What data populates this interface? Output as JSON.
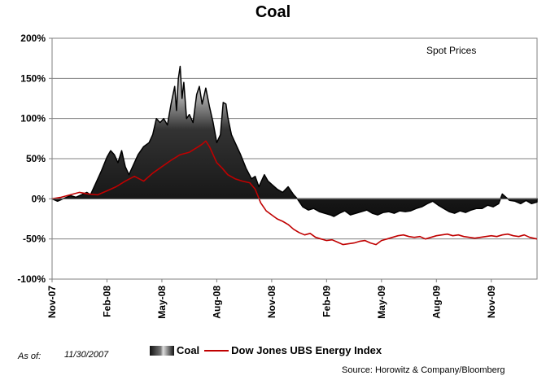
{
  "chart_data": {
    "type": "area",
    "title": "Coal",
    "annotation": "Spot Prices",
    "xlabel": "",
    "ylabel": "",
    "ylim": [
      -100,
      200
    ],
    "y_ticks": [
      "200%",
      "150%",
      "100%",
      "50%",
      "0%",
      "-50%",
      "-100%"
    ],
    "y_tick_values": [
      200,
      150,
      100,
      50,
      0,
      -50,
      -100
    ],
    "x_tick_labels": [
      "Nov-07",
      "Feb-08",
      "May-08",
      "Aug-08",
      "Nov-08",
      "Feb-09",
      "May-09",
      "Aug-09",
      "Nov-09"
    ],
    "x_range_months": [
      0,
      26.5
    ],
    "grid": true,
    "legend_position": "bottom",
    "series": [
      {
        "name": "Coal",
        "style": "area",
        "points": [
          [
            0,
            0
          ],
          [
            0.3,
            -3
          ],
          [
            0.6,
            0
          ],
          [
            1,
            4
          ],
          [
            1.3,
            2
          ],
          [
            1.6,
            5
          ],
          [
            1.9,
            8
          ],
          [
            2.1,
            5
          ],
          [
            2.4,
            20
          ],
          [
            2.7,
            35
          ],
          [
            3,
            52
          ],
          [
            3.2,
            60
          ],
          [
            3.4,
            55
          ],
          [
            3.6,
            45
          ],
          [
            3.8,
            60
          ],
          [
            4,
            40
          ],
          [
            4.2,
            30
          ],
          [
            4.5,
            45
          ],
          [
            4.7,
            55
          ],
          [
            5,
            65
          ],
          [
            5.3,
            70
          ],
          [
            5.5,
            80
          ],
          [
            5.7,
            100
          ],
          [
            5.9,
            95
          ],
          [
            6.1,
            100
          ],
          [
            6.3,
            92
          ],
          [
            6.5,
            118
          ],
          [
            6.7,
            140
          ],
          [
            6.8,
            110
          ],
          [
            6.9,
            150
          ],
          [
            7,
            165
          ],
          [
            7.1,
            125
          ],
          [
            7.2,
            145
          ],
          [
            7.35,
            100
          ],
          [
            7.5,
            105
          ],
          [
            7.7,
            95
          ],
          [
            7.9,
            130
          ],
          [
            8.05,
            140
          ],
          [
            8.2,
            118
          ],
          [
            8.4,
            138
          ],
          [
            8.6,
            115
          ],
          [
            8.8,
            95
          ],
          [
            9,
            70
          ],
          [
            9.2,
            80
          ],
          [
            9.35,
            120
          ],
          [
            9.5,
            118
          ],
          [
            9.6,
            102
          ],
          [
            9.8,
            80
          ],
          [
            10,
            70
          ],
          [
            10.3,
            55
          ],
          [
            10.6,
            38
          ],
          [
            10.9,
            25
          ],
          [
            11.1,
            28
          ],
          [
            11.3,
            15
          ],
          [
            11.6,
            30
          ],
          [
            11.8,
            22
          ],
          [
            12,
            18
          ],
          [
            12.3,
            12
          ],
          [
            12.6,
            8
          ],
          [
            12.9,
            15
          ],
          [
            13.2,
            5
          ],
          [
            13.4,
            0
          ],
          [
            13.7,
            -10
          ],
          [
            14,
            -14
          ],
          [
            14.3,
            -12
          ],
          [
            14.6,
            -16
          ],
          [
            14.9,
            -18
          ],
          [
            15.2,
            -20
          ],
          [
            15.4,
            -22
          ],
          [
            15.7,
            -18
          ],
          [
            16,
            -15
          ],
          [
            16.3,
            -20
          ],
          [
            16.6,
            -18
          ],
          [
            16.9,
            -16
          ],
          [
            17.2,
            -14
          ],
          [
            17.5,
            -18
          ],
          [
            17.8,
            -20
          ],
          [
            18.1,
            -17
          ],
          [
            18.4,
            -16
          ],
          [
            18.7,
            -18
          ],
          [
            19,
            -15
          ],
          [
            19.3,
            -16
          ],
          [
            19.6,
            -15
          ],
          [
            19.9,
            -12
          ],
          [
            20.2,
            -10
          ],
          [
            20.5,
            -6
          ],
          [
            20.8,
            -3
          ],
          [
            21.1,
            -8
          ],
          [
            21.4,
            -12
          ],
          [
            21.7,
            -16
          ],
          [
            22,
            -18
          ],
          [
            22.3,
            -15
          ],
          [
            22.6,
            -17
          ],
          [
            22.9,
            -14
          ],
          [
            23.2,
            -12
          ],
          [
            23.5,
            -12
          ],
          [
            23.8,
            -8
          ],
          [
            24.1,
            -10
          ],
          [
            24.4,
            -6
          ],
          [
            24.6,
            6
          ],
          [
            24.8,
            2
          ],
          [
            25,
            -2
          ],
          [
            25.3,
            -3
          ],
          [
            25.6,
            -6
          ],
          [
            25.9,
            -2
          ],
          [
            26.2,
            -6
          ],
          [
            26.5,
            -4
          ]
        ]
      },
      {
        "name": "Dow Jones UBS Energy Index",
        "color": "#c00000",
        "style": "line",
        "points": [
          [
            0,
            0
          ],
          [
            0.5,
            2
          ],
          [
            1,
            5
          ],
          [
            1.5,
            8
          ],
          [
            2,
            6
          ],
          [
            2.5,
            5
          ],
          [
            3,
            10
          ],
          [
            3.5,
            15
          ],
          [
            4,
            22
          ],
          [
            4.5,
            28
          ],
          [
            5,
            22
          ],
          [
            5.5,
            32
          ],
          [
            6,
            40
          ],
          [
            6.5,
            48
          ],
          [
            7,
            55
          ],
          [
            7.5,
            58
          ],
          [
            8,
            65
          ],
          [
            8.2,
            68
          ],
          [
            8.4,
            72
          ],
          [
            8.6,
            65
          ],
          [
            8.8,
            55
          ],
          [
            9,
            45
          ],
          [
            9.3,
            38
          ],
          [
            9.6,
            30
          ],
          [
            10,
            25
          ],
          [
            10.4,
            22
          ],
          [
            10.8,
            20
          ],
          [
            11.1,
            12
          ],
          [
            11.4,
            -5
          ],
          [
            11.7,
            -15
          ],
          [
            12,
            -20
          ],
          [
            12.3,
            -25
          ],
          [
            12.6,
            -28
          ],
          [
            12.9,
            -32
          ],
          [
            13.2,
            -38
          ],
          [
            13.5,
            -42
          ],
          [
            13.8,
            -45
          ],
          [
            14.1,
            -43
          ],
          [
            14.4,
            -48
          ],
          [
            14.7,
            -50
          ],
          [
            15,
            -52
          ],
          [
            15.3,
            -51
          ],
          [
            15.6,
            -54
          ],
          [
            15.9,
            -57
          ],
          [
            16.2,
            -56
          ],
          [
            16.5,
            -55
          ],
          [
            16.8,
            -53
          ],
          [
            17.1,
            -52
          ],
          [
            17.4,
            -55
          ],
          [
            17.7,
            -57
          ],
          [
            18,
            -52
          ],
          [
            18.3,
            -50
          ],
          [
            18.6,
            -48
          ],
          [
            18.9,
            -46
          ],
          [
            19.2,
            -45
          ],
          [
            19.5,
            -47
          ],
          [
            19.8,
            -48
          ],
          [
            20.1,
            -47
          ],
          [
            20.4,
            -50
          ],
          [
            20.7,
            -48
          ],
          [
            21,
            -46
          ],
          [
            21.3,
            -45
          ],
          [
            21.6,
            -44
          ],
          [
            21.9,
            -46
          ],
          [
            22.2,
            -45
          ],
          [
            22.5,
            -47
          ],
          [
            22.8,
            -48
          ],
          [
            23.1,
            -49
          ],
          [
            23.4,
            -48
          ],
          [
            23.7,
            -47
          ],
          [
            24,
            -46
          ],
          [
            24.3,
            -47
          ],
          [
            24.6,
            -45
          ],
          [
            24.9,
            -44
          ],
          [
            25.2,
            -46
          ],
          [
            25.5,
            -47
          ],
          [
            25.8,
            -45
          ],
          [
            26.1,
            -48
          ],
          [
            26.5,
            -50
          ]
        ]
      }
    ]
  },
  "footer": {
    "as_of_label": "As of:",
    "as_of_value": "11/30/2007",
    "source": "Source: Horowitz & Company/Bloomberg"
  },
  "legend": {
    "coal_label": "Coal",
    "index_label": "Dow Jones UBS Energy Index"
  }
}
